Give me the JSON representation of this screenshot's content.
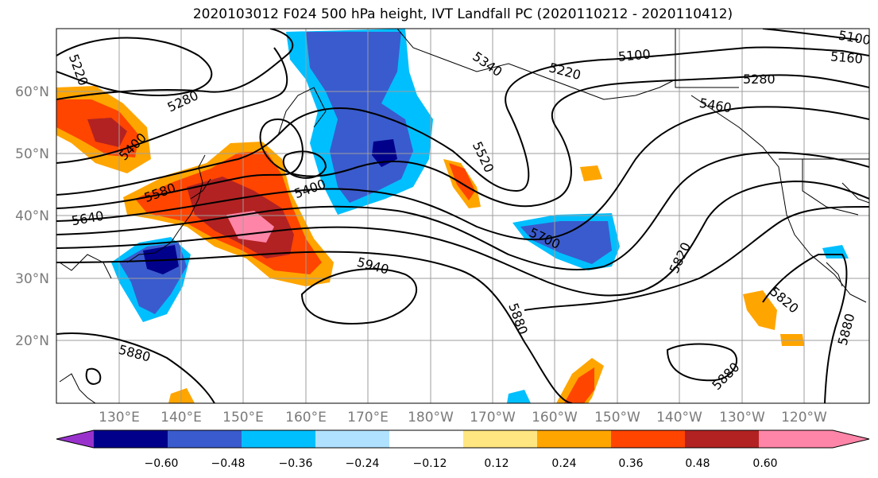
{
  "title": "2020103012 F024 500 hPa height, IVT Landfall PC (2020110212 - 2020110412)",
  "map": {
    "lat_labels": [
      "60°N",
      "50°N",
      "40°N",
      "30°N",
      "20°N"
    ],
    "lon_labels": [
      "130°E",
      "140°E",
      "150°E",
      "160°E",
      "170°E",
      "180°W",
      "170°W",
      "160°W",
      "150°W",
      "140°W",
      "130°W",
      "120°W"
    ]
  },
  "contour_labels": [
    "5220",
    "5280",
    "5400",
    "5580",
    "5640",
    "5400",
    "5340",
    "5220",
    "5100",
    "5160",
    "5280",
    "5460",
    "5520",
    "5700",
    "5820",
    "5940",
    "5880",
    "5880",
    "5820",
    "5880",
    "5880",
    "5100"
  ],
  "colorbar": {
    "ticks": [
      "−0.60",
      "−0.48",
      "−0.36",
      "−0.24",
      "−0.12",
      "0.12",
      "0.24",
      "0.36",
      "0.48",
      "0.60"
    ],
    "colors": [
      "#9932cc",
      "#00008b",
      "#3a5bcd",
      "#00bfff",
      "#b0e2ff",
      "#ffffff",
      "#ffe680",
      "#ffa500",
      "#ff4500",
      "#b22222",
      "#ff85a8",
      "#ff85a8"
    ]
  }
}
